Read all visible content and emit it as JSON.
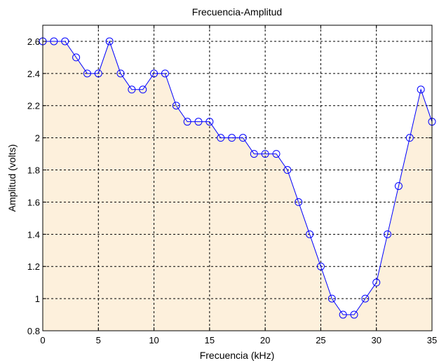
{
  "chart_data": {
    "type": "area",
    "title": "Frecuencia-Amplitud",
    "xlabel": "Frecuencia (kHz)",
    "ylabel": "Amplitud (volts)",
    "xlim": [
      0,
      35
    ],
    "ylim": [
      0.8,
      2.7
    ],
    "xticks": [
      0,
      5,
      10,
      15,
      20,
      25,
      30,
      35
    ],
    "xtick_labels": [
      "0",
      "5",
      "10",
      "15",
      "20",
      "25",
      "30",
      "35"
    ],
    "yticks": [
      0.8,
      1,
      1.2,
      1.4,
      1.6,
      1.8,
      2,
      2.2,
      2.4,
      2.6
    ],
    "ytick_labels": [
      "0.8",
      "1",
      "1.2",
      "1.4",
      "1.6",
      "1.8",
      "2",
      "2.2",
      "2.4",
      "2.6"
    ],
    "grid": true,
    "series": [
      {
        "x": [
          0,
          1,
          2,
          3,
          4,
          5,
          6,
          7,
          8,
          9,
          10,
          11,
          12,
          13,
          14,
          15,
          16,
          17,
          18,
          19,
          20,
          21,
          22,
          23,
          24,
          25,
          26,
          27,
          28,
          29,
          30,
          31,
          32,
          33,
          34,
          35
        ],
        "y": [
          2.6,
          2.6,
          2.6,
          2.5,
          2.4,
          2.4,
          2.6,
          2.4,
          2.3,
          2.3,
          2.4,
          2.4,
          2.2,
          2.1,
          2.1,
          2.1,
          2.0,
          2.0,
          2.0,
          1.9,
          1.9,
          1.9,
          1.8,
          1.6,
          1.4,
          1.2,
          1.0,
          0.9,
          0.9,
          1.0,
          1.1,
          1.4,
          1.7,
          2.0,
          2.3,
          2.1
        ],
        "line_color": "#0000ff",
        "marker": "circle"
      }
    ],
    "fill_color": "#fdf0dc"
  }
}
